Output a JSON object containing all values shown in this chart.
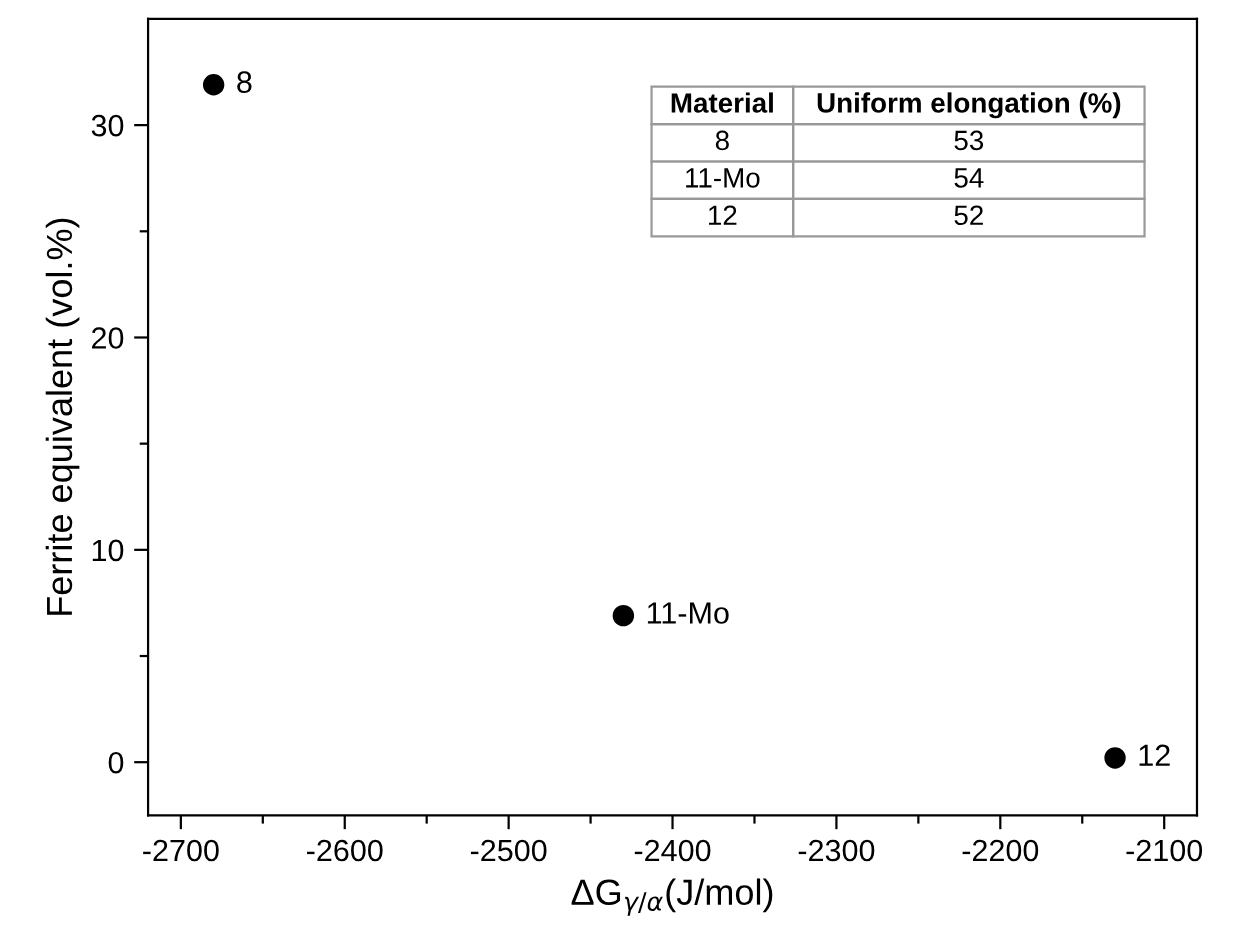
{
  "chart_data": {
    "type": "scatter",
    "xlabel": "ΔG$_{γ/α}$(J/mol)",
    "ylabel": "Ferrite equivalent (vol.%)",
    "x": [
      -2680,
      -2430,
      -2130
    ],
    "series": [
      {
        "color": "#000000",
        "values": [
          31.9,
          6.9,
          0.2
        ]
      }
    ],
    "marker": "circle",
    "xlim": [
      -2720,
      -2080
    ],
    "ylim": [
      -2.5,
      35
    ],
    "xticks": [
      -2700,
      {
        "value": -2650,
        "label": null
      },
      -2600,
      {
        "value": -2550,
        "label": null
      },
      -2500,
      {
        "value": -2450,
        "label": null
      },
      -2400,
      {
        "value": -2350,
        "label": null
      },
      -2300,
      {
        "value": -2250,
        "label": null
      },
      -2200,
      {
        "value": -2150,
        "label": null
      },
      -2100
    ],
    "yticks": [
      0,
      {
        "value": 5,
        "label": null
      },
      10,
      {
        "value": 15,
        "label": null
      },
      20,
      {
        "value": 25,
        "label": null
      },
      30
    ],
    "grid": false,
    "annotations": [
      {
        "text": "8",
        "x": -2680,
        "y": 31.9
      },
      {
        "text": "11-Mo",
        "x": -2430,
        "y": 6.9
      },
      {
        "text": "12",
        "x": -2130,
        "y": 0.2
      },
      "Material",
      "Uniform elongation (%)",
      "8",
      "53",
      "11-Mo",
      "54",
      "12",
      "52"
    ]
  }
}
